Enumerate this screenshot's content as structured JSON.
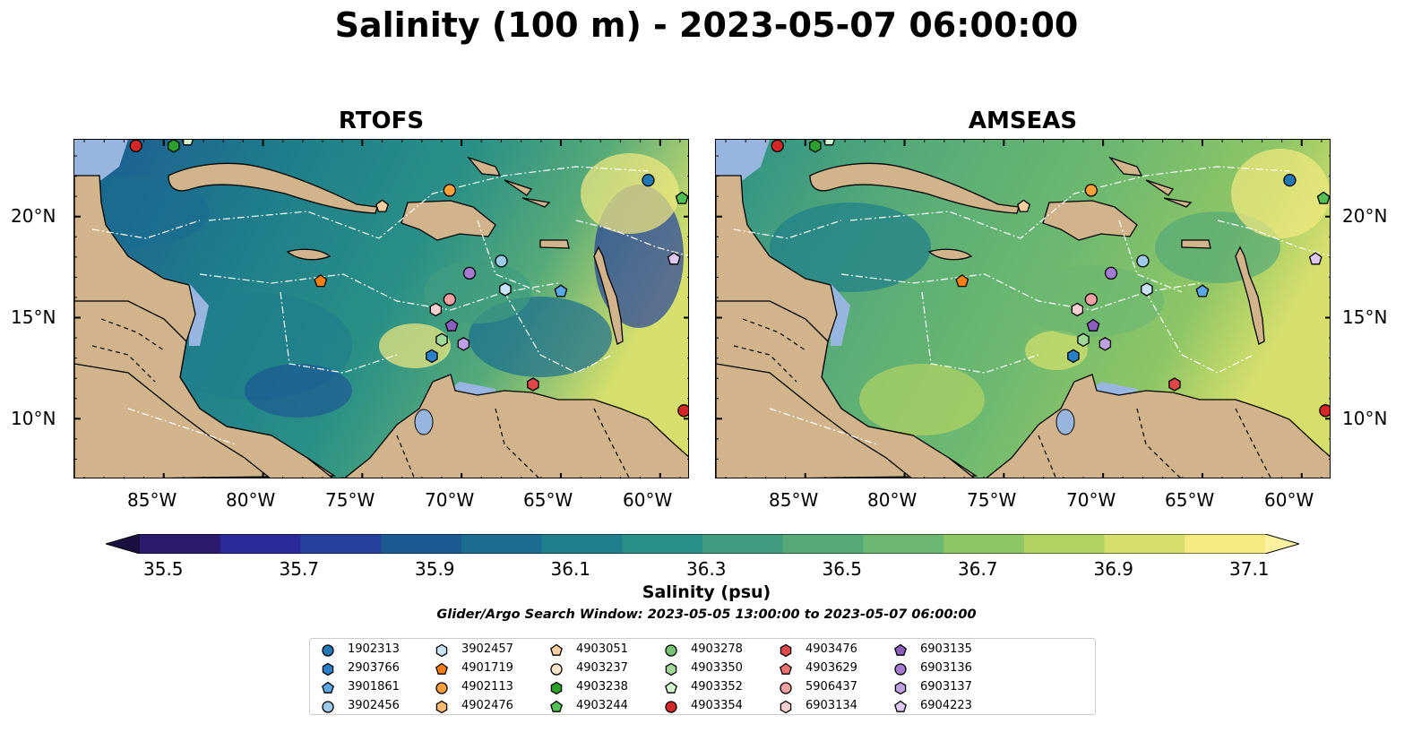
{
  "title": "Salinity (100 m) - 2023-05-07 06:00:00",
  "panels": [
    {
      "title": "RTOFS"
    },
    {
      "title": "AMSEAS"
    }
  ],
  "lat_ticks": [
    "20°N",
    "15°N",
    "10°N"
  ],
  "lon_ticks": [
    "85°W",
    "80°W",
    "75°W",
    "70°W",
    "65°W",
    "60°W"
  ],
  "colorbar": {
    "label": "Salinity (psu)",
    "ticks": [
      "35.5",
      "35.7",
      "35.9",
      "36.1",
      "36.3",
      "36.5",
      "36.7",
      "36.9",
      "37.1"
    ],
    "colors": [
      "#2b1a6b",
      "#2a2a9a",
      "#25419c",
      "#1c5a94",
      "#1a6d8f",
      "#1f7f8a",
      "#2a8f86",
      "#3f9c7f",
      "#55aa78",
      "#6cb870",
      "#8fc665",
      "#b2d362",
      "#d6df6c",
      "#f4ea80"
    ],
    "extend": "both"
  },
  "search_window": "Glider/Argo Search Window: 2023-05-05 13:00:00 to 2023-05-07 06:00:00",
  "map_colors": {
    "land": "#d2b48c",
    "shallow": "#98b5e0",
    "coast": "#000000",
    "rivers": "#8fb0e0"
  },
  "legend": [
    {
      "id": "1902313",
      "shape": "circle",
      "color": "#1f77b4"
    },
    {
      "id": "2903766",
      "shape": "hexagon",
      "color": "#2a80c8"
    },
    {
      "id": "3901861",
      "shape": "pentagon",
      "color": "#5aa8e8"
    },
    {
      "id": "3902456",
      "shape": "circle",
      "color": "#9ecae9"
    },
    {
      "id": "3902457",
      "shape": "hexagon",
      "color": "#c9e4f6"
    },
    {
      "id": "4901719",
      "shape": "pentagon",
      "color": "#ff7f0e"
    },
    {
      "id": "4902113",
      "shape": "circle",
      "color": "#ff9f3a"
    },
    {
      "id": "4902476",
      "shape": "hexagon",
      "color": "#ffb870"
    },
    {
      "id": "4903051",
      "shape": "pentagon",
      "color": "#ffcf9f"
    },
    {
      "id": "4903237",
      "shape": "circle",
      "color": "#ffe3c8"
    },
    {
      "id": "4903238",
      "shape": "hexagon",
      "color": "#2ca02c"
    },
    {
      "id": "4903244",
      "shape": "pentagon",
      "color": "#52c052"
    },
    {
      "id": "4903278",
      "shape": "circle",
      "color": "#74c476"
    },
    {
      "id": "4903350",
      "shape": "hexagon",
      "color": "#a1d99b"
    },
    {
      "id": "4903352",
      "shape": "pentagon",
      "color": "#d4f5cc"
    },
    {
      "id": "4903354",
      "shape": "circle",
      "color": "#d62728"
    },
    {
      "id": "4903476",
      "shape": "hexagon",
      "color": "#e0474b"
    },
    {
      "id": "4903629",
      "shape": "pentagon",
      "color": "#f07070"
    },
    {
      "id": "5906437",
      "shape": "circle",
      "color": "#f4a0a0"
    },
    {
      "id": "6903134",
      "shape": "hexagon",
      "color": "#fcd0d0"
    },
    {
      "id": "6903135",
      "shape": "pentagon",
      "color": "#8c5fbf"
    },
    {
      "id": "6903136",
      "shape": "circle",
      "color": "#a47bd1"
    },
    {
      "id": "6903137",
      "shape": "hexagon",
      "color": "#c0a0e4"
    },
    {
      "id": "6904223",
      "shape": "pentagon",
      "color": "#ddc8f4"
    }
  ],
  "markers": [
    {
      "id": "4903354",
      "lon": -86.4,
      "lat": 23.5
    },
    {
      "id": "4903238",
      "lon": -84.5,
      "lat": 23.5
    },
    {
      "id": "4903352",
      "lon": -83.8,
      "lat": 23.8
    },
    {
      "id": "4902113",
      "lon": -70.6,
      "lat": 21.3
    },
    {
      "id": "1902313",
      "lon": -60.6,
      "lat": 21.8
    },
    {
      "id": "4903244",
      "lon": -58.9,
      "lat": 20.9
    },
    {
      "id": "4903051",
      "lon": -74.0,
      "lat": 20.5
    },
    {
      "id": "6903136",
      "lon": -69.6,
      "lat": 17.2
    },
    {
      "id": "3902456",
      "lon": -68.0,
      "lat": 17.8
    },
    {
      "id": "6904223",
      "lon": -59.3,
      "lat": 17.9
    },
    {
      "id": "4901719",
      "lon": -77.1,
      "lat": 16.8
    },
    {
      "id": "3902457",
      "lon": -67.8,
      "lat": 16.4
    },
    {
      "id": "3901861",
      "lon": -65.0,
      "lat": 16.3
    },
    {
      "id": "5906437",
      "lon": -70.6,
      "lat": 15.9
    },
    {
      "id": "6903134",
      "lon": -71.3,
      "lat": 15.4
    },
    {
      "id": "6903135",
      "lon": -70.5,
      "lat": 14.6
    },
    {
      "id": "4903350",
      "lon": -71.0,
      "lat": 13.9
    },
    {
      "id": "6903137",
      "lon": -69.9,
      "lat": 13.7
    },
    {
      "id": "2903766",
      "lon": -71.5,
      "lat": 13.1
    },
    {
      "id": "4903476",
      "lon": -66.4,
      "lat": 11.7
    },
    {
      "id": "4903354",
      "lon": -58.8,
      "lat": 10.4
    }
  ]
}
